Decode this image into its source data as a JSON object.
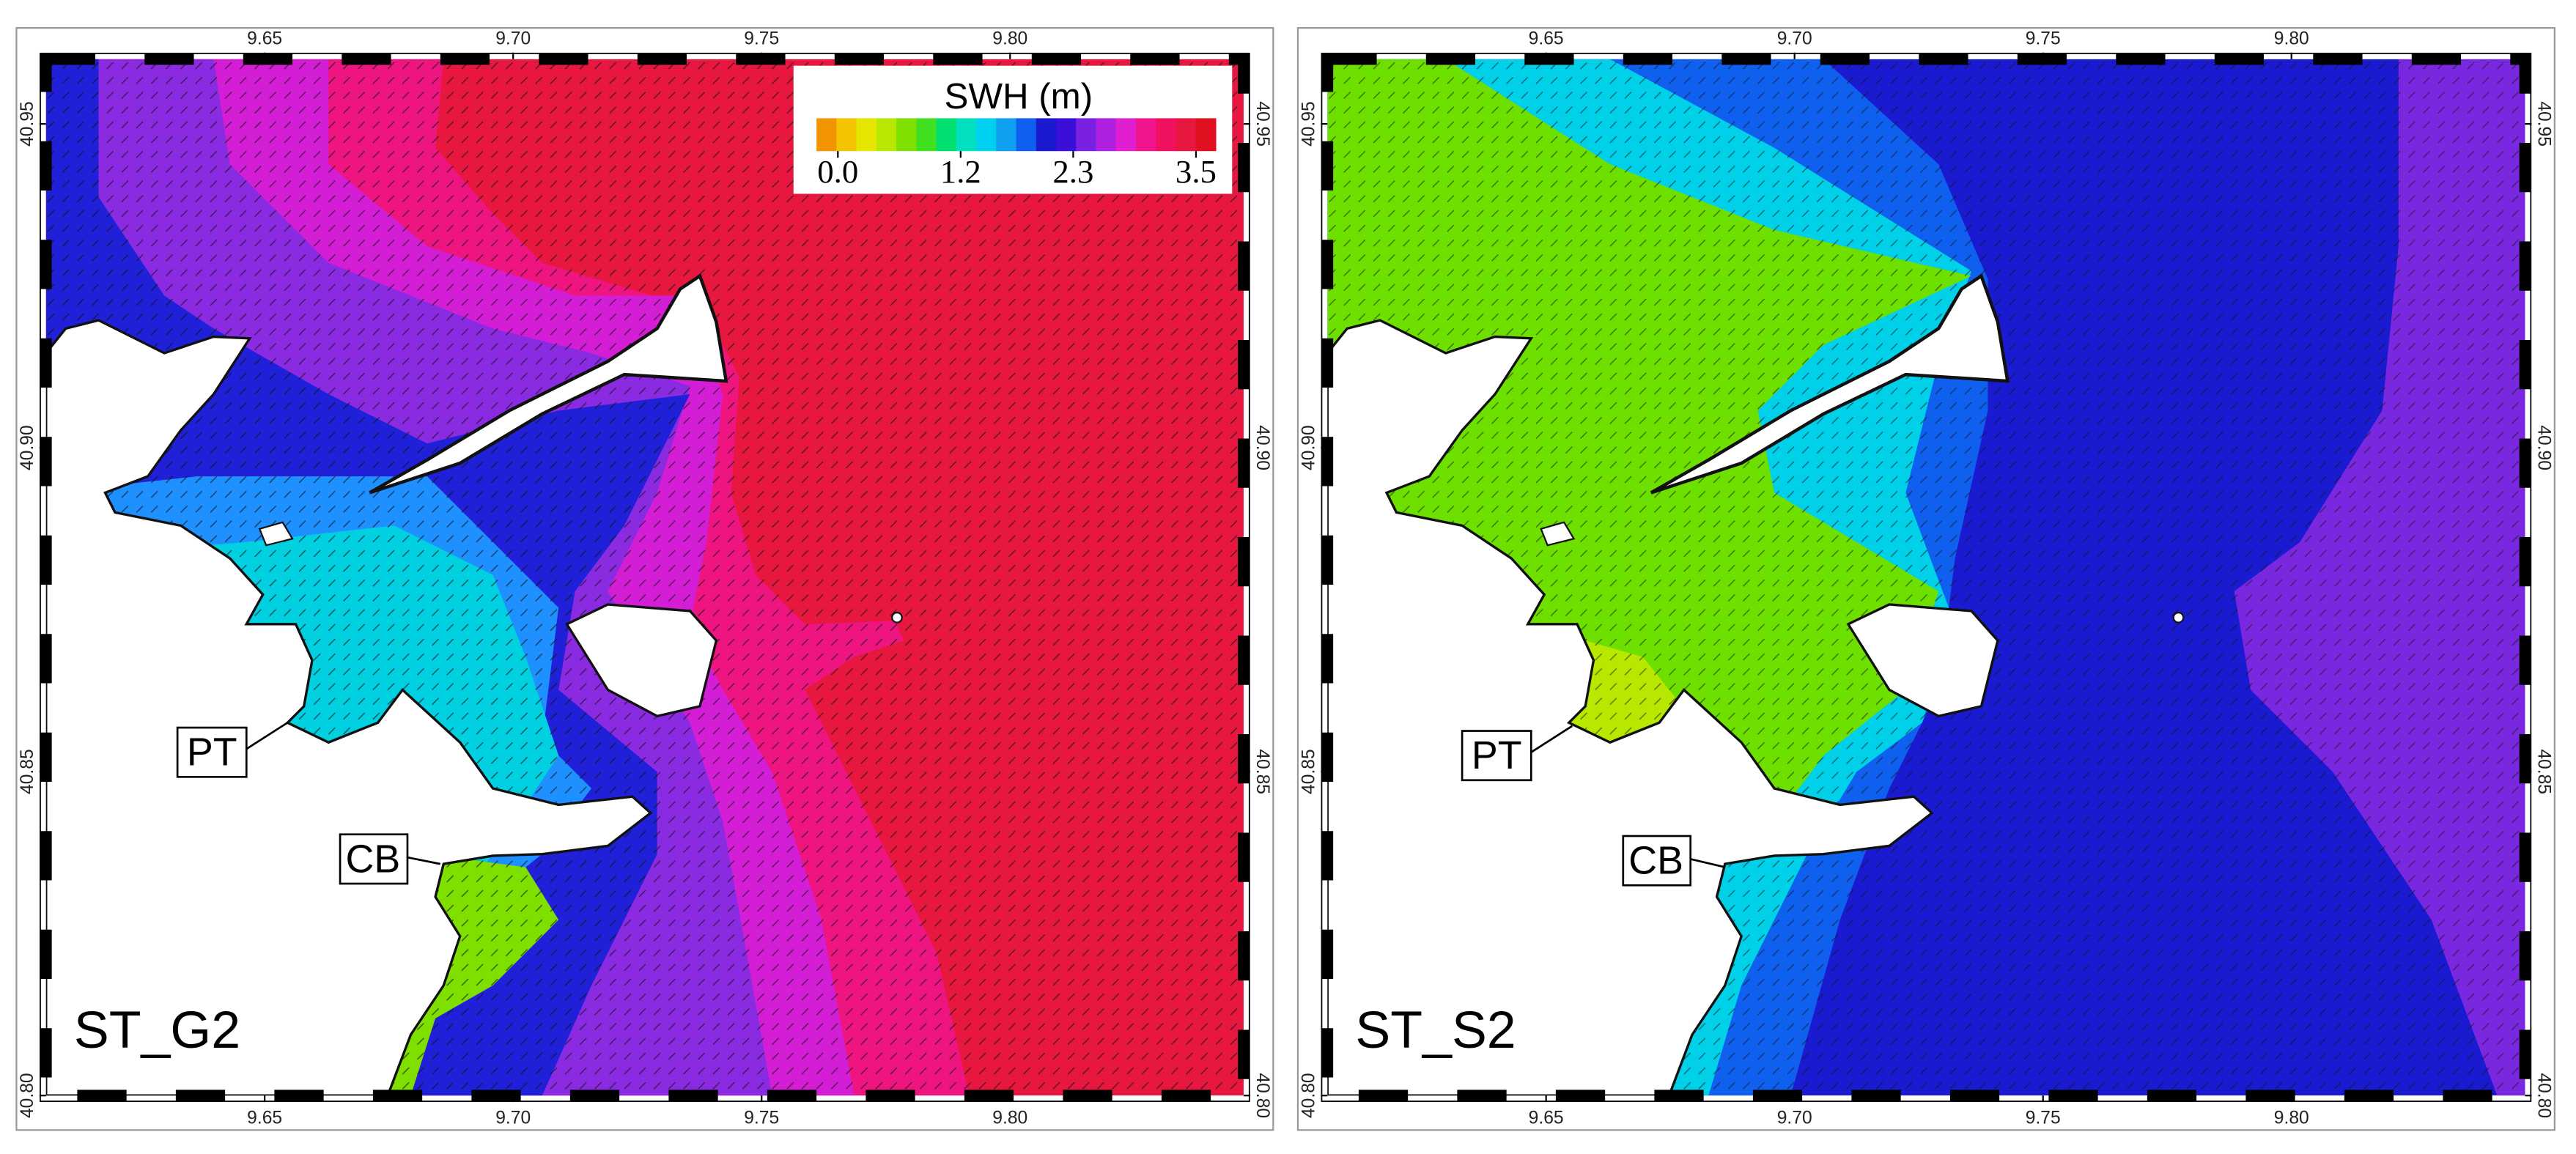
{
  "panels": [
    {
      "label": "ST_G2",
      "annotations": [
        "PT",
        "CB"
      ]
    },
    {
      "label": "ST_S2",
      "annotations": [
        "PT",
        "CB"
      ]
    }
  ],
  "axes": {
    "xlim": [
      9.606,
      9.847
    ],
    "ylim": [
      40.8,
      40.96
    ],
    "xticks": [
      9.65,
      {
        "value": 9.7,
        "label": "9.70"
      },
      9.75,
      {
        "value": 9.8,
        "label": "9.80"
      }
    ],
    "yticks": [
      {
        "value": 40.8,
        "label": "40.80"
      },
      40.85,
      {
        "value": 40.9,
        "label": "40.90"
      },
      40.95
    ]
  },
  "colorbar": {
    "title": "SWH (m)",
    "clim": [
      0,
      3.5
    ],
    "ticks": [
      {
        "value": 0,
        "label": "0.0"
      },
      1.2,
      2.3,
      3.5
    ],
    "colors": [
      "#f29400",
      "#f5c400",
      "#e6e600",
      "#b8e800",
      "#7fe000",
      "#40e020",
      "#00e070",
      "#00e0c0",
      "#00d0f0",
      "#10a0f0",
      "#1060f0",
      "#1a1ad0",
      "#3a10d8",
      "#7a20e0",
      "#b020e0",
      "#e020d0",
      "#f0158c",
      "#f01060",
      "#e8173f",
      "#e01020"
    ]
  }
}
